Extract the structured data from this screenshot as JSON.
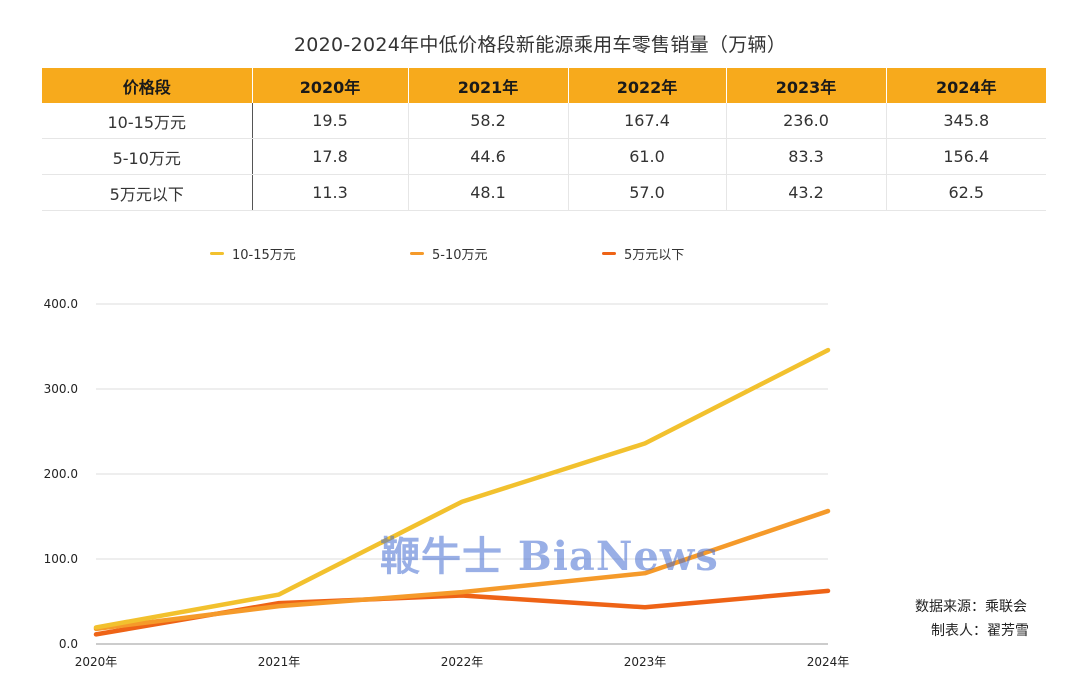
{
  "title": "2020-2024年中低价格段新能源乘用车零售销量（万辆）",
  "table": {
    "header": [
      "价格段",
      "2020年",
      "2021年",
      "2022年",
      "2023年",
      "2024年"
    ],
    "rows": [
      [
        "10-15万元",
        "19.5",
        "58.2",
        "167.4",
        "236.0",
        "345.8"
      ],
      [
        "5-10万元",
        "17.8",
        "44.6",
        "61.0",
        "83.3",
        "156.4"
      ],
      [
        "5万元以下",
        "11.3",
        "48.1",
        "57.0",
        "43.2",
        "62.5"
      ]
    ]
  },
  "chart_data": {
    "type": "line",
    "title": "2020-2024年中低价格段新能源乘用车零售销量（万辆）",
    "x": [
      "2020年",
      "2021年",
      "2022年",
      "2023年",
      "2024年"
    ],
    "series": [
      {
        "name": "10-15万元",
        "values": [
          19.5,
          58.2,
          167.4,
          236.0,
          345.8
        ],
        "color": "#f2c12e"
      },
      {
        "name": "5-10万元",
        "values": [
          17.8,
          44.6,
          61.0,
          83.3,
          156.4
        ],
        "color": "#f59a2a"
      },
      {
        "name": "5万元以下",
        "values": [
          11.3,
          48.1,
          57.0,
          43.2,
          62.5
        ],
        "color": "#ee6316"
      }
    ],
    "yticks": [
      "0.0",
      "100.0",
      "200.0",
      "300.0",
      "400.0"
    ],
    "ylim": [
      0,
      400
    ],
    "grid": true,
    "legend_position": "top"
  },
  "source": {
    "line1": "数据来源：乘联会",
    "line2": "制表人：翟芳雪"
  },
  "watermark": "鞭牛士 BiaNews"
}
